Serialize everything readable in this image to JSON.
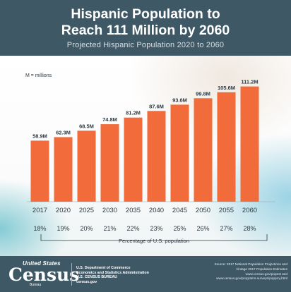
{
  "header": {
    "title_line1": "Hispanic Population to",
    "title_line2": "Reach 111 Million by 2060",
    "subtitle": "Projected Hispanic Population 2020 to 2060"
  },
  "colors": {
    "bar": "#f26b3a",
    "header_bg": "#3f5866",
    "text": "#2c3a42"
  },
  "chart_data": {
    "type": "bar",
    "title": "Hispanic Population to Reach 111 Million by 2060",
    "subtitle": "Projected Hispanic Population 2020 to 2060",
    "unit_note": "M = millions",
    "categories": [
      "2017",
      "2020",
      "2025",
      "2030",
      "2035",
      "2040",
      "2045",
      "2050",
      "2055",
      "2060"
    ],
    "values": [
      58.9,
      62.3,
      68.5,
      74.8,
      81.2,
      87.6,
      93.6,
      99.8,
      105.6,
      111.2
    ],
    "value_labels": [
      "58.9M",
      "62.3M",
      "68.5M",
      "74.8M",
      "81.2M",
      "87.6M",
      "93.6M",
      "99.8M",
      "105.6M",
      "111.2M"
    ],
    "percent_labels": [
      "18%",
      "19%",
      "20%",
      "21%",
      "22%",
      "23%",
      "25%",
      "26%",
      "27%",
      "28%"
    ],
    "percent_caption": "Percentage of U.S. population",
    "xlabel": "",
    "ylabel": "",
    "ylim": [
      0,
      115
    ],
    "grid": false,
    "legend": "none"
  },
  "footer": {
    "logo_top": "United States",
    "logo_main": "Census",
    "logo_bottom": "Bureau",
    "agency_lines": [
      "U.S. Department of Commerce",
      "Economics and Statistics Administration",
      "U.S. CENSUS BUREAU",
      "census.gov"
    ],
    "source_lines": [
      "Source: 2017 National Population Projections and",
      "Vintage 2017 Population Estimates",
      "www.census.gov/popest and",
      "www.census.gov/programs-surveys/popproj.html"
    ]
  }
}
